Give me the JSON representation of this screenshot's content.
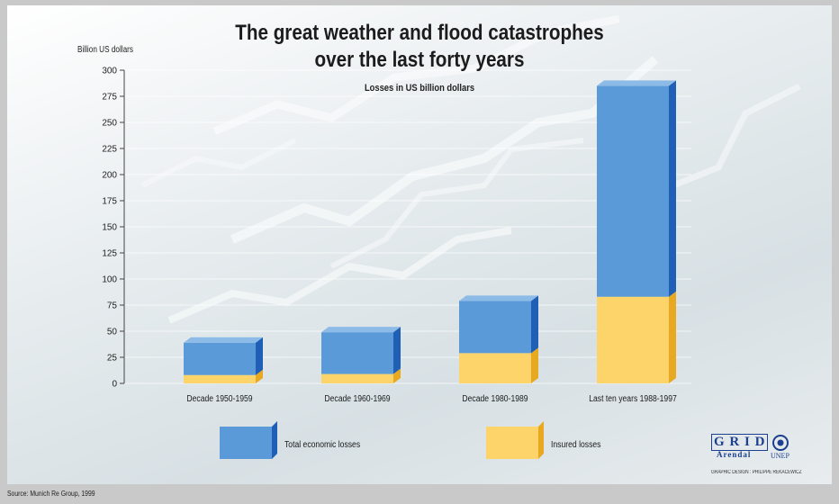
{
  "chart_data": {
    "type": "bar",
    "stacked": true,
    "title": "The great weather and flood catastrophes\nover the last forty years",
    "subtitle": "Losses in US billion dollars",
    "ylabel": "Billion US dollars",
    "ylim": [
      0,
      300
    ],
    "yticks": [
      0,
      25,
      50,
      75,
      100,
      125,
      150,
      175,
      200,
      225,
      250,
      275,
      300
    ],
    "categories": [
      "Decade 1950-1959",
      "Decade 1960-1969",
      "Decade 1980-1989",
      "Last ten years 1988-1997"
    ],
    "series": [
      {
        "name": "Insured losses",
        "values": [
          8,
          9,
          29,
          83
        ],
        "color": "#fdd46a"
      },
      {
        "name": "Total economic losses",
        "values": [
          31,
          40,
          50,
          202
        ],
        "color": "#5b9ad8"
      }
    ],
    "legend_position": "bottom",
    "grid": true
  },
  "logo": {
    "grid": "GRID",
    "arendal": "Arendal",
    "unep": "UNEP"
  },
  "credit": "GRAPHIC DESIGN : PHILIPPE REKACEWICZ",
  "source": "Source: Munich Re Group, 1999"
}
